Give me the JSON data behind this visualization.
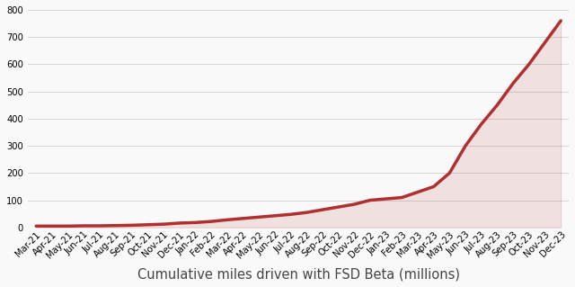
{
  "labels": [
    "Mar-21",
    "Apr-21",
    "May-21",
    "Jun-21",
    "Jul-21",
    "Aug-21",
    "Sep-21",
    "Oct-21",
    "Nov-21",
    "Dec-21",
    "Jan-22",
    "Feb-22",
    "Mar-22",
    "Apr-22",
    "May-22",
    "Jun-22",
    "Jul-22",
    "Aug-22",
    "Sep-22",
    "Oct-22",
    "Nov-22",
    "Dec-22",
    "Jan-23",
    "Feb-23",
    "Mar-23",
    "Apr-23",
    "May-23",
    "Jun-23",
    "Jul-23",
    "Aug-23",
    "Sep-23",
    "Oct-23",
    "Nov-23",
    "Dec-23"
  ],
  "values": [
    5,
    5,
    5,
    6,
    6,
    7,
    8,
    10,
    12,
    16,
    18,
    22,
    28,
    33,
    38,
    43,
    48,
    55,
    65,
    75,
    85,
    100,
    105,
    110,
    130,
    150,
    200,
    300,
    380,
    450,
    530,
    600,
    680,
    760
  ],
  "line_color": "#b03030",
  "fill_color": "#b03030",
  "background_color": "#f9f9f9",
  "grid_color": "#d0d0d0",
  "title": "Cumulative miles driven with FSD Beta (millions)",
  "title_fontsize": 10.5,
  "tick_fontsize": 7.2,
  "ylim": [
    0,
    800
  ],
  "yticks": [
    0,
    100,
    200,
    300,
    400,
    500,
    600,
    700,
    800
  ]
}
